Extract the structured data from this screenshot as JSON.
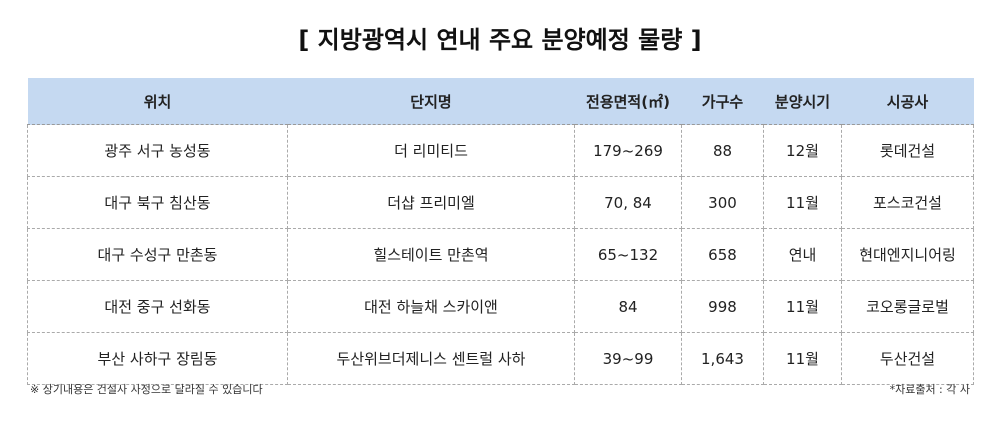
{
  "title": "[ 지방광역시 연내 주요 분양예정 물량 ]",
  "table": {
    "headers": [
      "위치",
      "단지명",
      "전용면적(㎡)",
      "가구수",
      "분양시기",
      "시공사"
    ],
    "rows": [
      [
        "광주 서구 농성동",
        "더 리미티드",
        "179~269",
        "88",
        "12월",
        "롯데건설"
      ],
      [
        "대구 북구 침산동",
        "더샵 프리미엘",
        "70, 84",
        "300",
        "11월",
        "포스코건설"
      ],
      [
        "대구 수성구 만촌동",
        "힐스테이트 만촌역",
        "65~132",
        "658",
        "연내",
        "현대엔지니어링"
      ],
      [
        "대전 중구 선화동",
        "대전 하늘채 스카이앤",
        "84",
        "998",
        "11월",
        "코오롱글로벌"
      ],
      [
        "부산 사하구 장림동",
        "두산위브더제니스 센트럴 사하",
        "39~99",
        "1,643",
        "11월",
        "두산건설"
      ]
    ]
  },
  "footnote_left": "※ 상기내용은 건설사 사정으로 달라질 수 있습니다",
  "footnote_right": "*자료출처 : 각 사",
  "colors": {
    "header_bg": "#c5d9f1"
  }
}
